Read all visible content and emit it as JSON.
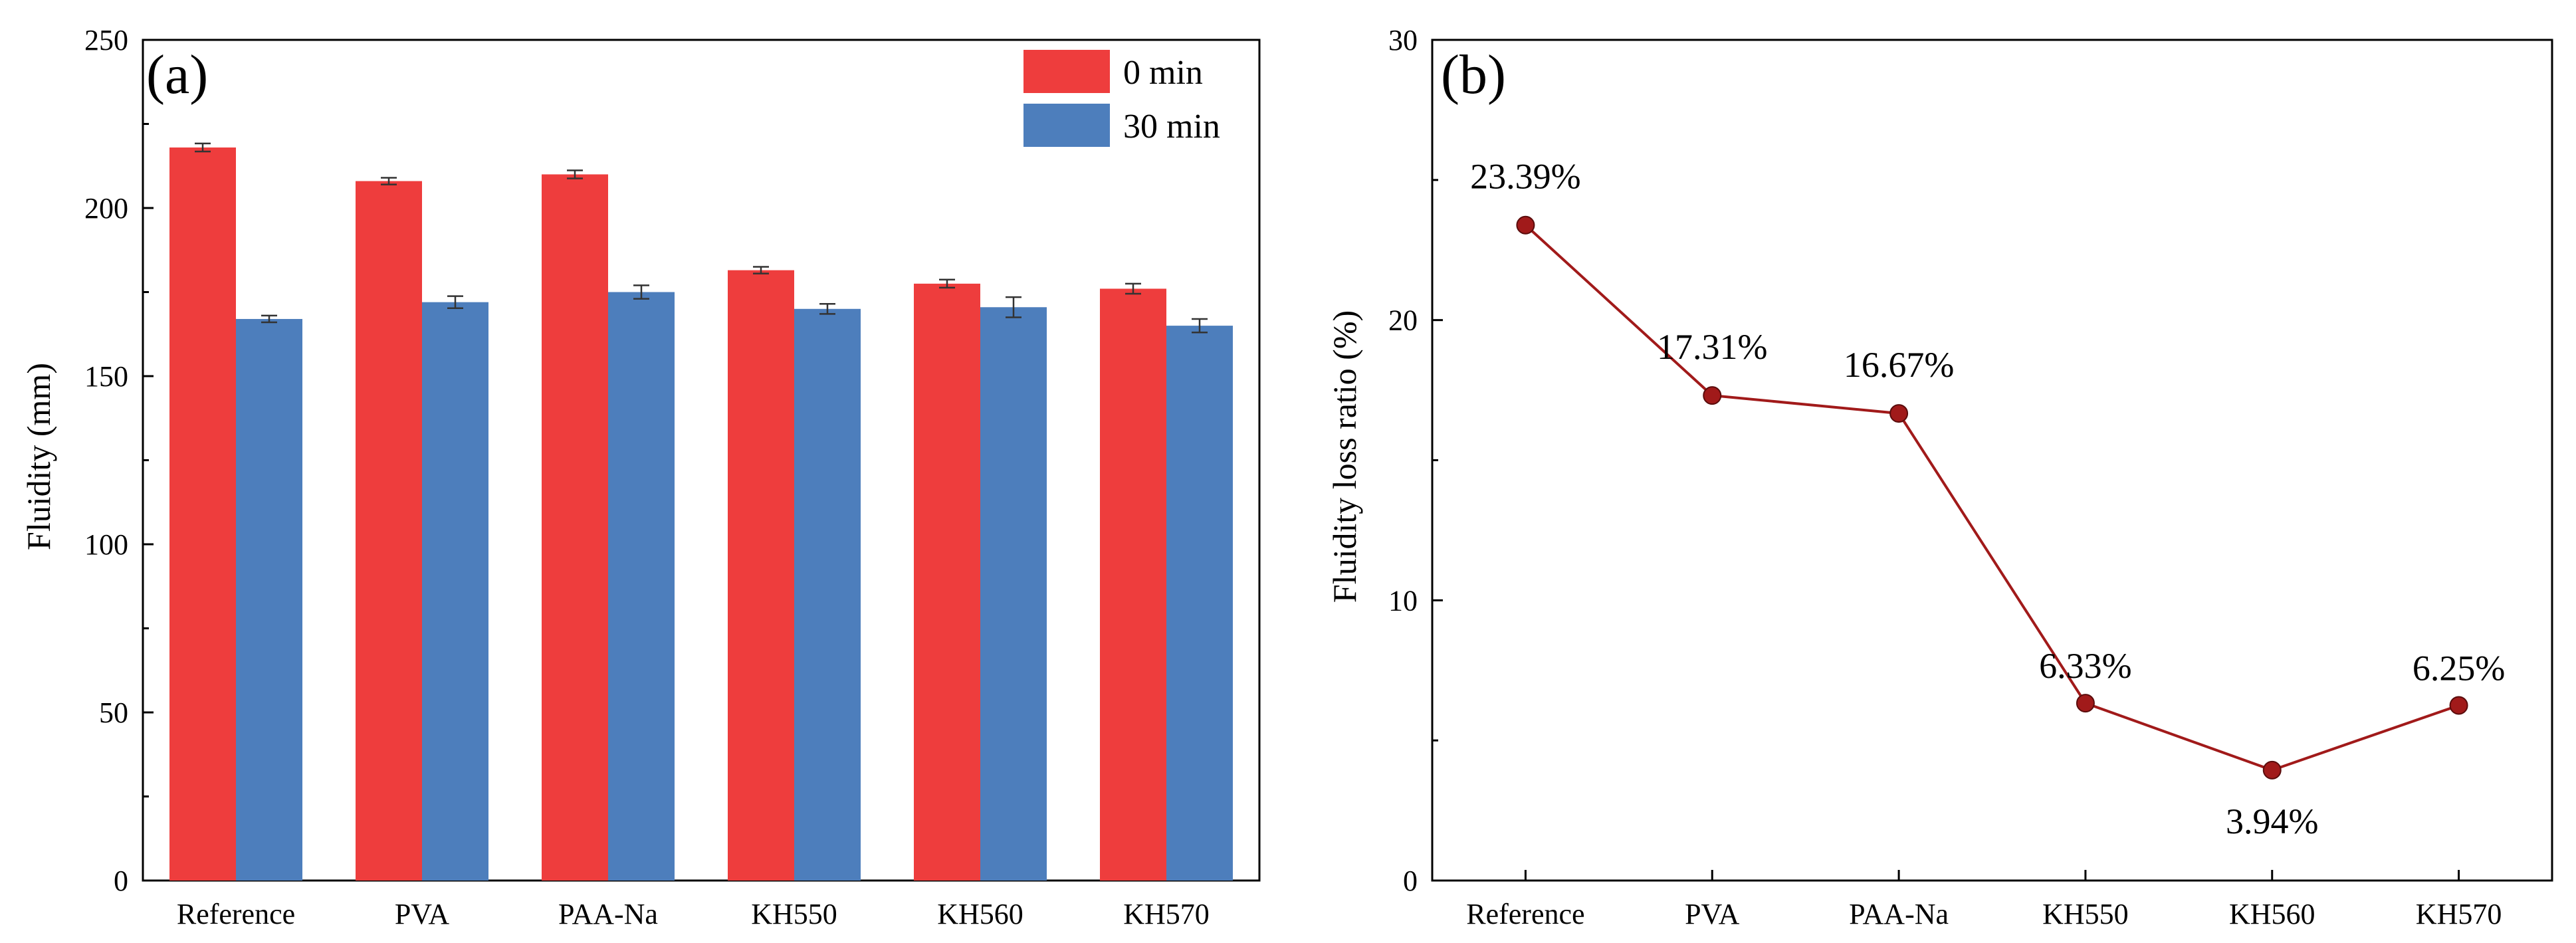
{
  "chart_data": [
    {
      "panel": "(a)",
      "type": "bar",
      "categories": [
        "Reference",
        "PVA",
        "PAA-Na",
        "KH550",
        "KH560",
        "KH570"
      ],
      "series": [
        {
          "name": "0 min",
          "color": "#ee3d3d",
          "values": [
            218,
            208,
            210,
            181.5,
            177.5,
            176
          ],
          "errors": [
            1.2,
            1.0,
            1.2,
            1.0,
            1.2,
            1.5
          ]
        },
        {
          "name": "30 min",
          "color": "#4d7ebc",
          "values": [
            167,
            172,
            175,
            170,
            170.5,
            165
          ],
          "errors": [
            1.0,
            1.8,
            2.0,
            1.5,
            3.0,
            2.0
          ]
        }
      ],
      "xlabel": "",
      "ylabel": "Fluidity (mm)",
      "ylim": [
        0,
        250
      ],
      "yticks": [
        "0",
        "50",
        "100",
        "150",
        "200",
        "250"
      ],
      "legend_position": "top-right",
      "grid": false
    },
    {
      "panel": "(b)",
      "type": "line",
      "categories": [
        "Reference",
        "PVA",
        "PAA-Na",
        "KH550",
        "KH560",
        "KH570"
      ],
      "series": [
        {
          "name": "Fluidity loss ratio",
          "color": "#a11a1a",
          "values": [
            23.39,
            17.31,
            16.67,
            6.33,
            3.94,
            6.25
          ]
        }
      ],
      "data_labels": [
        "23.39%",
        "17.31%",
        "16.67%",
        "6.33%",
        "3.94%",
        "6.25%"
      ],
      "xlabel": "",
      "ylabel": "Fluidity loss ratio (%)",
      "ylim": [
        0,
        30
      ],
      "yticks": [
        "0",
        "10",
        "20",
        "30"
      ],
      "grid": false
    }
  ]
}
